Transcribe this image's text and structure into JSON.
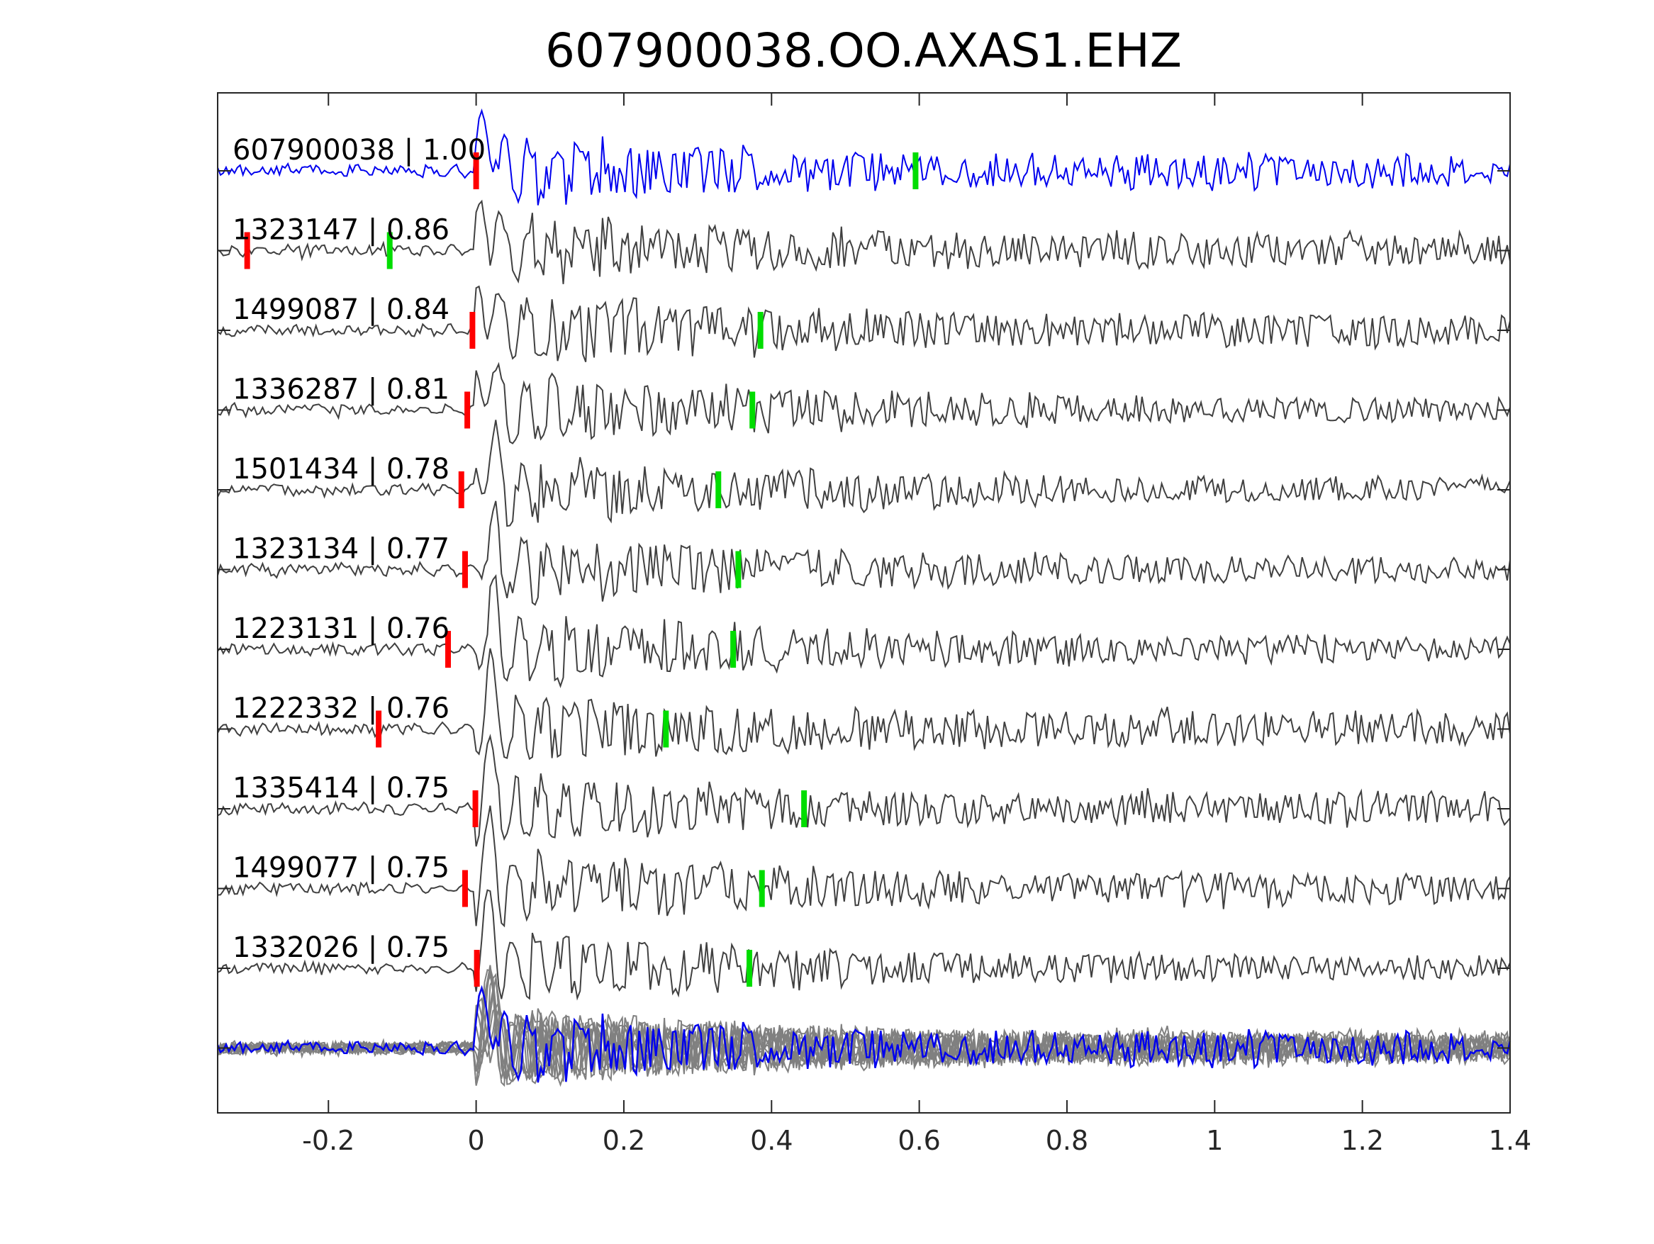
{
  "chart_data": {
    "type": "line",
    "title": "607900038.OO.AXAS1.EHZ",
    "xlabel": "",
    "ylabel": "",
    "xlim": [
      -0.35,
      1.4
    ],
    "x_ticks": [
      -0.2,
      0,
      0.2,
      0.4,
      0.6,
      0.8,
      1,
      1.2,
      1.4
    ],
    "x_tick_labels": [
      "-0.2",
      "0",
      "0.2",
      "0.4",
      "0.6",
      "0.8",
      "1",
      "1.2",
      "1.4"
    ],
    "grid": false,
    "legend": "none",
    "colors": {
      "master_trace": "#0000ee",
      "other_traces": "#404040",
      "stack_traces": "#808080",
      "p_pick": "#ff0000",
      "s_pick": "#00dd00",
      "axes": "#262626"
    },
    "series": [
      {
        "label": "607900038 | 1.00",
        "p_pick": 0.0,
        "s_pick": 0.595
      },
      {
        "label": "1323147 | 0.86",
        "p_pick": -0.31,
        "s_pick": -0.117
      },
      {
        "label": "1499087 | 0.84",
        "p_pick": -0.005,
        "s_pick": 0.385
      },
      {
        "label": "1336287 | 0.81",
        "p_pick": -0.012,
        "s_pick": 0.374
      },
      {
        "label": "1501434 | 0.78",
        "p_pick": -0.02,
        "s_pick": 0.328
      },
      {
        "label": "1323134 | 0.77",
        "p_pick": -0.015,
        "s_pick": 0.355
      },
      {
        "label": "1223131 | 0.76",
        "p_pick": -0.038,
        "s_pick": 0.348
      },
      {
        "label": "1222332 | 0.76",
        "p_pick": -0.132,
        "s_pick": 0.257
      },
      {
        "label": "1335414 | 0.75",
        "p_pick": -0.001,
        "s_pick": 0.444
      },
      {
        "label": "1499077 | 0.75",
        "p_pick": -0.015,
        "s_pick": 0.387
      },
      {
        "label": "1332026 | 0.75",
        "p_pick": 0.001,
        "s_pick": 0.37
      }
    ],
    "stack": {
      "master_index": 0
    }
  }
}
